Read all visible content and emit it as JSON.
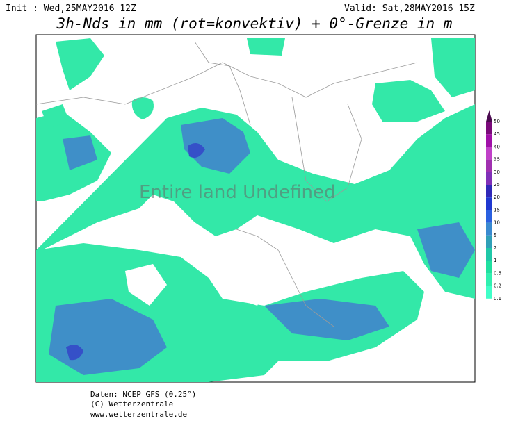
{
  "header": {
    "init": "Init : Wed,25MAY2016 12Z",
    "valid": "Valid: Sat,28MAY2016 15Z",
    "title": "3h-Nds in mm (rot=konvektiv) + 0°-Grenze in m"
  },
  "watermark": "Entire land Undefined",
  "legend": [
    {
      "label": "50",
      "color": "#4b0a50"
    },
    {
      "label": "45",
      "color": "#7a0a7a"
    },
    {
      "label": "40",
      "color": "#a010a8"
    },
    {
      "label": "35",
      "color": "#c040c8"
    },
    {
      "label": "30",
      "color": "#a030b0"
    },
    {
      "label": "25",
      "color": "#8030b8"
    },
    {
      "label": "20",
      "color": "#3028b8"
    },
    {
      "label": "15",
      "color": "#2038d0"
    },
    {
      "label": "10",
      "color": "#2a60e0"
    },
    {
      "label": "5",
      "color": "#3a8ad0"
    },
    {
      "label": "2",
      "color": "#30a0b8"
    },
    {
      "label": "1",
      "color": "#20c8a8"
    },
    {
      "label": "0.5",
      "color": "#20e0a0"
    },
    {
      "label": "0.2",
      "color": "#30f0b0"
    },
    {
      "label": "0.1",
      "color": "#40ffc8"
    }
  ],
  "footer": [
    "Daten: NCEP GFS (0.25°)",
    "(C) Wetterzentrale",
    "www.wetterzentrale.de"
  ]
}
